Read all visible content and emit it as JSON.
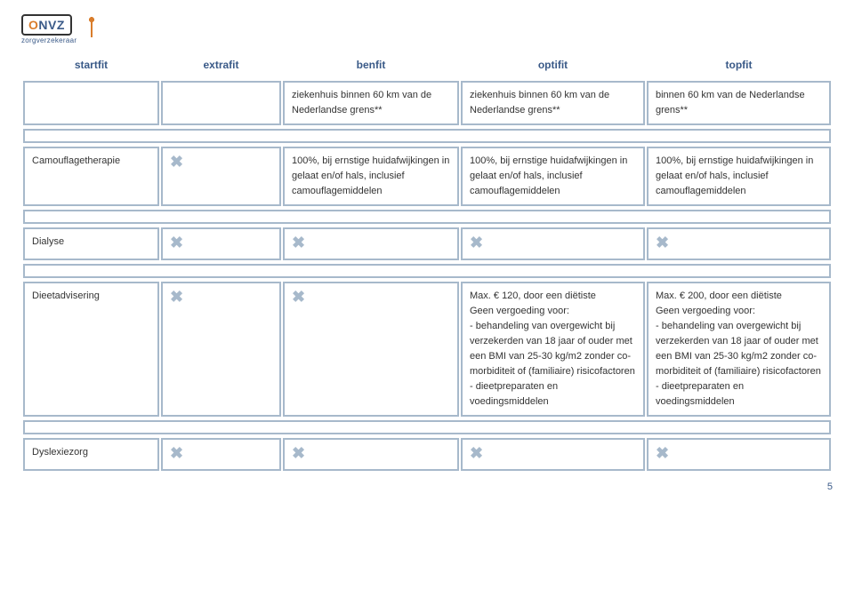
{
  "logo": {
    "o": "O",
    "nvz": "NVZ",
    "sub": "zorgverzekeraar"
  },
  "headers": [
    "startfit",
    "extrafit",
    "benfit",
    "optifit",
    "topfit"
  ],
  "row0": {
    "c3": "ziekenhuis binnen 60 km van de Nederlandse grens**",
    "c4": "ziekenhuis binnen 60 km van de Nederlandse grens**",
    "c5": "binnen 60 km van de Nederlandse grens**"
  },
  "row1": {
    "label": "Camouflagetherapie",
    "c3": "100%, bij ernstige huidafwijkingen in gelaat en/of hals, inclusief camouflagemiddelen",
    "c4": "100%, bij ernstige huidafwijkingen in gelaat en/of hals, inclusief camouflagemiddelen",
    "c5": "100%, bij ernstige huidafwijkingen in gelaat en/of hals, inclusief camouflagemiddelen"
  },
  "row2": {
    "label": "Dialyse"
  },
  "row3": {
    "label": "Dieetadvisering",
    "c4": "Max. € 120, door een diëtiste\nGeen vergoeding voor:\n- behandeling van overgewicht bij verzekerden van 18 jaar of ouder met een BMI van 25-30 kg/m2 zonder co-morbiditeit of (familiaire) risicofactoren\n- dieetpreparaten en voedingsmiddelen",
    "c5": "Max. € 200, door een diëtiste\nGeen vergoeding voor:\n- behandeling van overgewicht bij verzekerden van 18 jaar of ouder met een BMI van 25-30 kg/m2 zonder co-morbiditeit of (familiaire) risicofactoren\n- dieetpreparaten en voedingsmiddelen"
  },
  "row4": {
    "label": "Dyslexiezorg"
  },
  "x": "✖",
  "pagenum": "5"
}
